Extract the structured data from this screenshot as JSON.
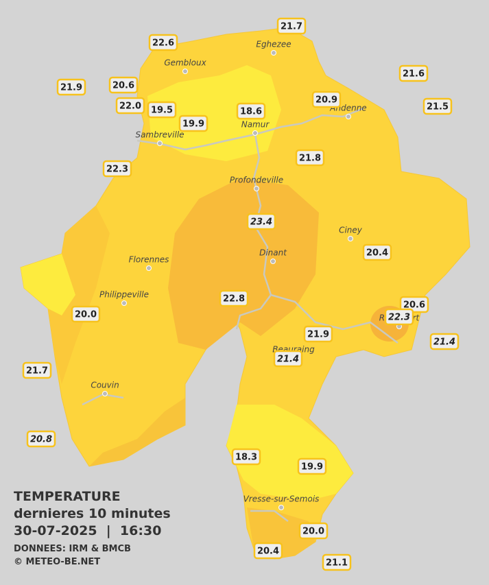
{
  "header": {
    "title": "TEMPERATURE",
    "subtitle": "dernieres 10 minutes",
    "datetime": "30-07-2025  |  16:30",
    "source": "DONNEES: IRM & BMCB",
    "copyright": "© METEO-BE.NET"
  },
  "stations": [
    {
      "value": "22.6",
      "italic": false
    },
    {
      "value": "21.7",
      "italic": false
    },
    {
      "value": "21.6",
      "italic": false
    },
    {
      "value": "21.9",
      "italic": false
    },
    {
      "value": "20.6",
      "italic": false
    },
    {
      "value": "22.0",
      "italic": false
    },
    {
      "value": "19.5",
      "italic": false
    },
    {
      "value": "18.6",
      "italic": false
    },
    {
      "value": "20.9",
      "italic": false
    },
    {
      "value": "21.5",
      "italic": false
    },
    {
      "value": "19.9",
      "italic": false
    },
    {
      "value": "21.8",
      "italic": false
    },
    {
      "value": "22.3",
      "italic": false
    },
    {
      "value": "23.4",
      "italic": true
    },
    {
      "value": "20.4",
      "italic": false
    },
    {
      "value": "22.8",
      "italic": false
    },
    {
      "value": "20.0",
      "italic": false
    },
    {
      "value": "20.6",
      "italic": false
    },
    {
      "value": "22.3",
      "italic": true
    },
    {
      "value": "21.9",
      "italic": false
    },
    {
      "value": "21.4",
      "italic": true
    },
    {
      "value": "21.4",
      "italic": true
    },
    {
      "value": "21.7",
      "italic": false
    },
    {
      "value": "20.8",
      "italic": true
    },
    {
      "value": "18.3",
      "italic": false
    },
    {
      "value": "19.9",
      "italic": false
    },
    {
      "value": "20.0",
      "italic": false
    },
    {
      "value": "20.4",
      "italic": false
    },
    {
      "value": "21.1",
      "italic": false
    }
  ],
  "towns": [
    "Eghezee",
    "Gembloux",
    "Andenne",
    "Namur",
    "Sambreville",
    "Profondeville",
    "Ciney",
    "Dinant",
    "Florennes",
    "Philippeville",
    "Rochefort",
    "Beauraing",
    "Couvin",
    "Vresse-sur-Semois"
  ]
}
